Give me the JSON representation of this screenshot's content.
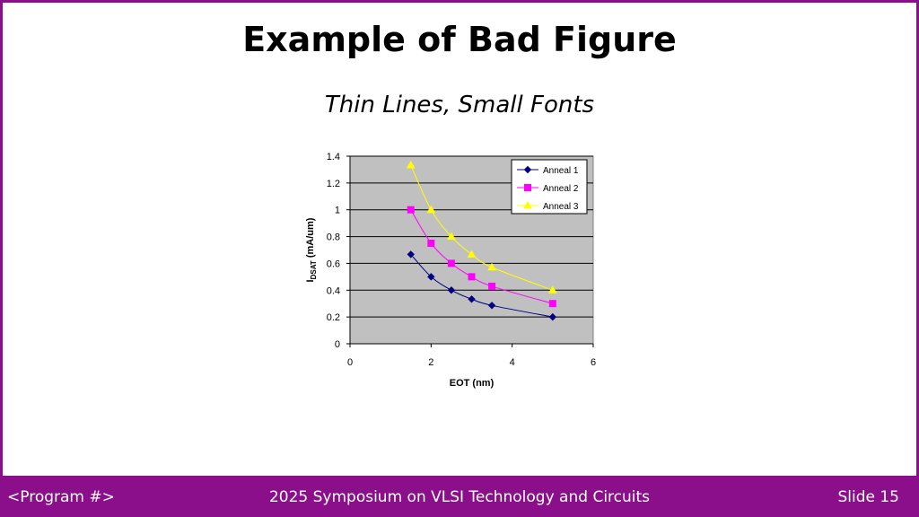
{
  "slide": {
    "title": "Example of Bad Figure",
    "subtitle": "Thin Lines, Small Fonts"
  },
  "footer": {
    "left": "<Program #>",
    "center": "2025 Symposium on VLSI Technology and Circuits",
    "right": "Slide 15"
  },
  "colors": {
    "border": "#8b0e8b",
    "footer_bg": "#8b0e8b",
    "plot_bg": "#c0c0c0"
  },
  "chart_data": {
    "type": "line",
    "title": "",
    "xlabel": "EOT (nm)",
    "ylabel": "IDSAT (mA/um)",
    "ylabel_main": "I",
    "ylabel_sub": "DSAT",
    "ylabel_rest": " (mA/um)",
    "xlim": [
      0,
      6
    ],
    "ylim": [
      0,
      1.4
    ],
    "xticks": [
      0,
      2,
      4,
      6
    ],
    "xtick_labels": [
      "0",
      "2",
      "4",
      "6"
    ],
    "yticks": [
      0,
      0.2,
      0.4,
      0.6,
      0.8,
      1,
      1.2,
      1.4
    ],
    "ytick_labels": [
      "0",
      "0.2",
      "0.4",
      "0.6",
      "0.8",
      "1",
      "1.2",
      "1.4"
    ],
    "grid": true,
    "legend_position": "top-right",
    "series": [
      {
        "name": "Anneal 1",
        "color": "#000080",
        "marker": "diamond",
        "x": [
          1.5,
          2,
          2.5,
          3,
          3.5,
          5
        ],
        "y": [
          0.667,
          0.5,
          0.4,
          0.333,
          0.286,
          0.2
        ]
      },
      {
        "name": "Anneal 2",
        "color": "#ff00ff",
        "marker": "square",
        "x": [
          1.5,
          2,
          2.5,
          3,
          3.5,
          5
        ],
        "y": [
          1.0,
          0.75,
          0.6,
          0.5,
          0.429,
          0.3
        ]
      },
      {
        "name": "Anneal 3",
        "color": "#ffff00",
        "marker": "triangle",
        "x": [
          1.5,
          2,
          2.5,
          3,
          3.5,
          5
        ],
        "y": [
          1.333,
          1.0,
          0.8,
          0.667,
          0.571,
          0.4
        ]
      }
    ]
  }
}
